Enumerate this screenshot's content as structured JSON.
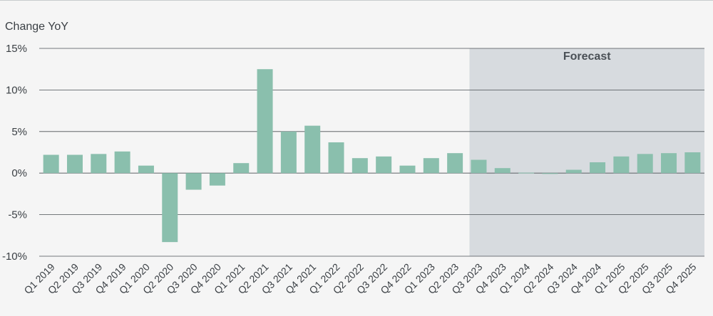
{
  "chart_data": {
    "type": "bar",
    "ylabel": "Change YoY",
    "ylim": [
      -10,
      15
    ],
    "yticks": [
      15,
      10,
      5,
      0,
      -5,
      -10
    ],
    "ytick_labels": [
      "15%",
      "10%",
      "5%",
      "0%",
      "-5%",
      "-10%"
    ],
    "grid": "horizontal",
    "categories": [
      "Q1 2019",
      "Q2 2019",
      "Q3 2019",
      "Q4 2019",
      "Q1 2020",
      "Q2 2020",
      "Q3 2020",
      "Q4 2020",
      "Q1 2021",
      "Q2 2021",
      "Q3 2021",
      "Q4 2021",
      "Q1 2022",
      "Q2 2022",
      "Q3 2022",
      "Q4 2022",
      "Q1 2023",
      "Q2 2023",
      "Q3 2023",
      "Q4 2023",
      "Q1 2024",
      "Q2 2024",
      "Q3 2024",
      "Q4 2024",
      "Q1 2025",
      "Q2 2025",
      "Q3 2025",
      "Q4 2025"
    ],
    "values": [
      2.2,
      2.2,
      2.3,
      2.6,
      0.9,
      -8.3,
      -2.0,
      -1.5,
      1.2,
      12.5,
      5.0,
      5.7,
      3.7,
      1.8,
      2.0,
      0.9,
      1.8,
      2.4,
      1.6,
      0.6,
      0.05,
      -0.1,
      0.4,
      1.3,
      2.0,
      2.3,
      2.4,
      2.5
    ],
    "forecast": {
      "label": "Forecast",
      "start_category": "Q3 2023"
    },
    "colors": {
      "bar": "#8abfad",
      "forecast_shade": "#d7dbdf",
      "grid": "#4a4f54",
      "text": "#3a3f44"
    }
  }
}
